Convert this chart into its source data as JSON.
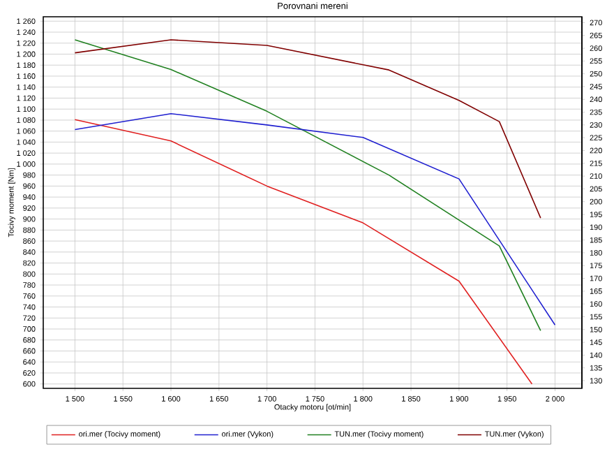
{
  "chart_data": {
    "type": "line",
    "title": "Porovnani mereni",
    "xlabel": "Otacky motoru [ot/min]",
    "ylabel": "Tocivy moment [Nm]",
    "xlim": [
      1467,
      2028
    ],
    "xticks": [
      {
        "value": 1500,
        "label": "1 500"
      },
      {
        "value": 1550,
        "label": "1 550"
      },
      {
        "value": 1600,
        "label": "1 600"
      },
      {
        "value": 1650,
        "label": "1 650"
      },
      {
        "value": 1700,
        "label": "1 700"
      },
      {
        "value": 1750,
        "label": "1 750"
      },
      {
        "value": 1800,
        "label": "1 800"
      },
      {
        "value": 1850,
        "label": "1 850"
      },
      {
        "value": 1900,
        "label": "1 900"
      },
      {
        "value": 1950,
        "label": "1 950"
      },
      {
        "value": 2000,
        "label": "2 000"
      }
    ],
    "ylim": [
      592,
      1268
    ],
    "yticks": [
      600,
      620,
      640,
      660,
      680,
      700,
      720,
      740,
      760,
      780,
      800,
      820,
      840,
      860,
      880,
      900,
      920,
      940,
      960,
      980,
      {
        "value": 1000,
        "label": "1 000"
      },
      {
        "value": 1020,
        "label": "1 020"
      },
      {
        "value": 1040,
        "label": "1 040"
      },
      {
        "value": 1060,
        "label": "1 060"
      },
      {
        "value": 1080,
        "label": "1 080"
      },
      {
        "value": 1100,
        "label": "1 100"
      },
      {
        "value": 1120,
        "label": "1 120"
      },
      {
        "value": 1140,
        "label": "1 140"
      },
      {
        "value": 1160,
        "label": "1 160"
      },
      {
        "value": 1180,
        "label": "1 180"
      },
      {
        "value": 1200,
        "label": "1 200"
      },
      {
        "value": 1220,
        "label": "1 220"
      },
      {
        "value": 1240,
        "label": "1 240"
      },
      {
        "value": 1260,
        "label": "1 260"
      }
    ],
    "y2lim": [
      127,
      272.3
    ],
    "y2ticks": [
      130,
      135,
      140,
      145,
      150,
      155,
      160,
      165,
      170,
      175,
      180,
      185,
      190,
      195,
      200,
      205,
      210,
      215,
      220,
      225,
      230,
      235,
      240,
      245,
      250,
      255,
      260,
      265,
      270
    ],
    "grid": true,
    "legend": "bottom",
    "marker": "none",
    "line_style": "solid",
    "series": [
      {
        "name": "ori.mer (Tocivy moment)",
        "color": "#e02020",
        "x": [
          1500,
          1600,
          1700,
          1800,
          1900,
          1976
        ],
        "values": [
          1081,
          1042,
          960,
          893,
          787,
          600
        ]
      },
      {
        "name": "ori.mer (Vykon)",
        "color": "#2020d0",
        "axis": "y2",
        "x": [
          1500,
          1600,
          1700,
          1800,
          1900,
          2000
        ],
        "values": [
          228.2,
          234.4,
          230,
          225.1,
          208.9,
          151.8
        ]
      },
      {
        "name": "TUN.mer (Tocivy moment)",
        "color": "#208020",
        "x": [
          1500,
          1600,
          1700,
          1827,
          1942,
          1985
        ],
        "values": [
          1226,
          1172,
          1096,
          980,
          851,
          697
        ]
      },
      {
        "name": "TUN.mer (Vykon)",
        "color": "#800000",
        "axis": "y2",
        "x": [
          1500,
          1600,
          1700,
          1827,
          1900,
          1942,
          1985
        ],
        "values": [
          258.2,
          263.3,
          261.1,
          251.5,
          239.6,
          231.3,
          193.6
        ]
      }
    ]
  }
}
